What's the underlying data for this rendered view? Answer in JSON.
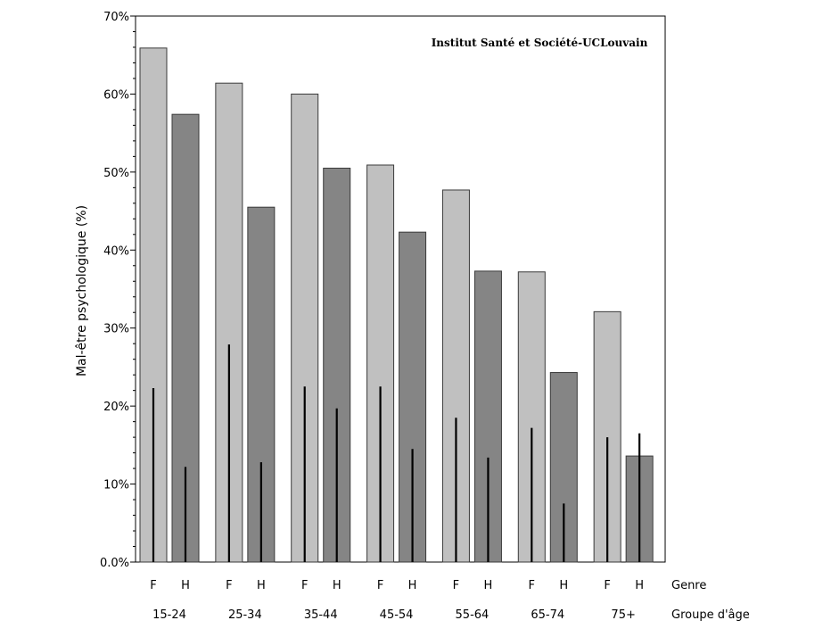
{
  "chart_data": {
    "type": "bar",
    "annotation": "Institut Santé et Société-UCLouvain",
    "ylabel": "Mal-être psychologique (%)",
    "ylim": [
      0,
      70
    ],
    "yticks": [
      {
        "value": 0,
        "label": "0.0%"
      },
      {
        "value": 10,
        "label": "10%"
      },
      {
        "value": 20,
        "label": "20%"
      },
      {
        "value": 30,
        "label": "30%"
      },
      {
        "value": 40,
        "label": "40%"
      },
      {
        "value": 50,
        "label": "50%"
      },
      {
        "value": 60,
        "label": "60%"
      },
      {
        "value": 70,
        "label": "70%"
      }
    ],
    "genre_axis_label": "Genre",
    "group_axis_label": "Groupe d'âge",
    "gender_labels": {
      "F": "F",
      "H": "H"
    },
    "groups": [
      "15-24",
      "25-34",
      "35-44",
      "45-54",
      "55-64",
      "65-74",
      "75+"
    ],
    "series": [
      {
        "key": "F",
        "values": [
          65.9,
          61.4,
          60.0,
          50.9,
          47.7,
          37.2,
          32.1
        ],
        "reference": [
          22.3,
          27.9,
          22.5,
          22.5,
          18.5,
          17.2,
          16.0
        ]
      },
      {
        "key": "H",
        "values": [
          57.4,
          45.5,
          50.5,
          42.3,
          37.3,
          24.3,
          13.6
        ],
        "reference": [
          12.2,
          12.8,
          19.7,
          14.5,
          13.4,
          7.5,
          16.5
        ]
      }
    ],
    "colors": {
      "F": "#c0c0c0",
      "H": "#858585",
      "reference": "#000000",
      "outline": "#3a3a3a"
    },
    "grid": false,
    "legend": "none"
  }
}
